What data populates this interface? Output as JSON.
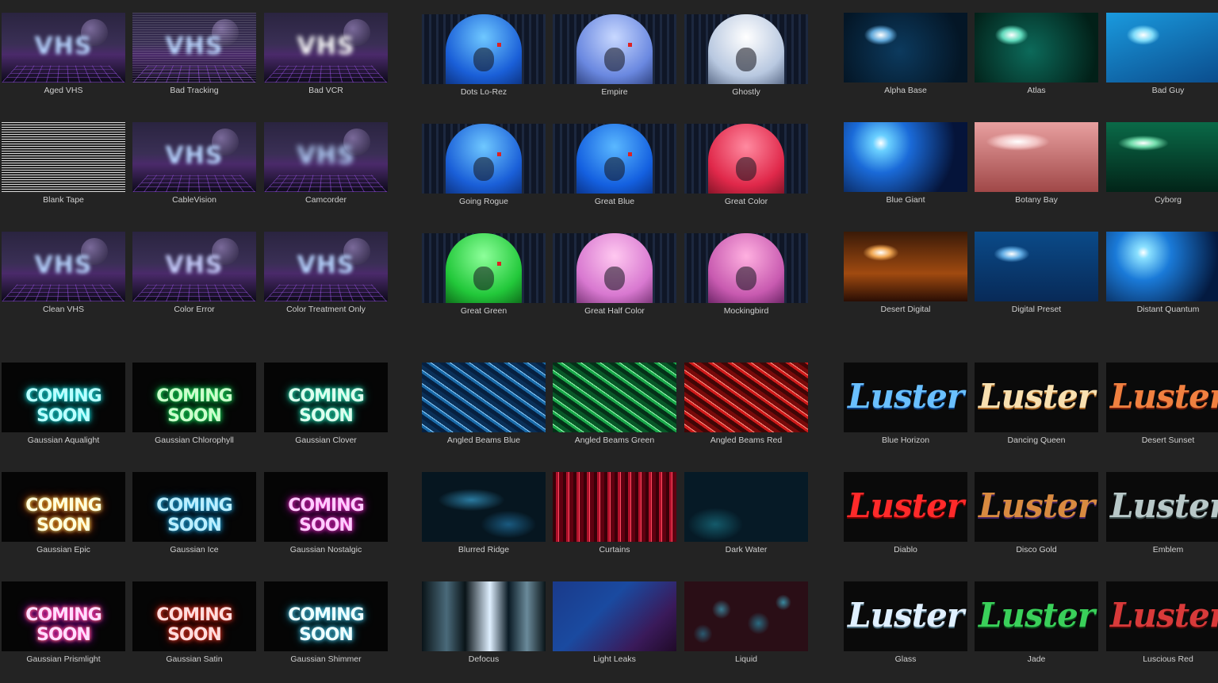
{
  "groups": {
    "vhs": [
      "Aged VHS",
      "Bad Tracking",
      "Bad VCR",
      "Blank Tape",
      "CableVision",
      "Camcorder",
      "Clean VHS",
      "Color Error",
      "Color Treatment Only"
    ],
    "hood": [
      "Dots Lo-Rez",
      "Empire",
      "Ghostly",
      "Going Rogue",
      "Great Blue",
      "Great Color",
      "Great Green",
      "Great Half Color",
      "Mockingbird"
    ],
    "lens": [
      "Alpha Base",
      "Atlas",
      "Bad Guy",
      "Blue Giant",
      "Botany Bay",
      "Cyborg",
      "Desert Digital",
      "Digital Preset",
      "Distant Quantum"
    ],
    "glow": [
      "Gaussian Aqualight",
      "Gaussian Chlorophyll",
      "Gaussian Clover",
      "Gaussian Epic",
      "Gaussian Ice",
      "Gaussian Nostalgic",
      "Gaussian Prismlight",
      "Gaussian Satin",
      "Gaussian Shimmer"
    ],
    "bg": [
      "Angled Beams Blue",
      "Angled Beams Green",
      "Angled Beams Red",
      "Blurred Ridge",
      "Curtains",
      "Dark Water",
      "Defocus",
      "Light Leaks",
      "Liquid"
    ],
    "luster": [
      "Blue Horizon",
      "Dancing Queen",
      "Desert Sunset",
      "Diablo",
      "Disco Gold",
      "Emblem",
      "Glass",
      "Jade",
      "Luscious Red"
    ]
  },
  "thumb_text": {
    "vhs_word": "VHS",
    "coming_soon": "COMING SOON",
    "luster": "Luster"
  }
}
